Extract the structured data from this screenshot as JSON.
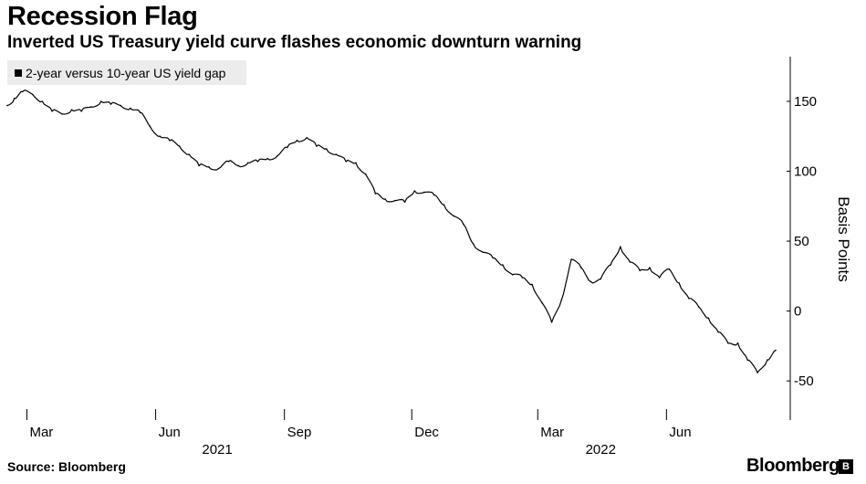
{
  "header": {
    "title": "Recession Flag",
    "subtitle": "Inverted US Treasury yield curve flashes economic downturn warning"
  },
  "legend": {
    "label": "2-year versus 10-year US yield gap"
  },
  "footer": {
    "source": "Source: Bloomberg",
    "brand": "Bloomberg",
    "brand_icon": "bloomberg-b-icon"
  },
  "chart_data": {
    "type": "line",
    "title": "Recession Flag",
    "subtitle": "Inverted US Treasury yield curve flashes economic downturn warning",
    "ylabel": "Basis Points",
    "xlabel": "",
    "y_axis_side": "right",
    "ylim": [
      -78,
      182
    ],
    "y_ticks": [
      150,
      100,
      50,
      0,
      -50
    ],
    "y_tick_labels": [
      "150",
      "100",
      "50",
      "0",
      "-50"
    ],
    "x_range": [
      "2021-02-15",
      "2022-08-18"
    ],
    "x_tick_dates": [
      "2021-03-01",
      "2021-06-01",
      "2021-09-01",
      "2021-12-01",
      "2022-03-01",
      "2022-06-01"
    ],
    "x_tick_labels": [
      "Mar",
      "Jun",
      "Sep",
      "Dec",
      "Mar",
      "Jun"
    ],
    "year_labels": [
      {
        "label": "2021",
        "date": "2021-07-15"
      },
      {
        "label": "2022",
        "date": "2022-04-15"
      }
    ],
    "grid": false,
    "legend_position": "top-left",
    "series": [
      {
        "name": "2-year versus 10-year US yield gap",
        "color": "#000000",
        "x": [
          "2021-02-15",
          "2021-02-20",
          "2021-02-26",
          "2021-03-05",
          "2021-03-12",
          "2021-03-19",
          "2021-03-26",
          "2021-04-02",
          "2021-04-09",
          "2021-04-16",
          "2021-04-23",
          "2021-04-30",
          "2021-05-07",
          "2021-05-14",
          "2021-05-21",
          "2021-05-28",
          "2021-06-04",
          "2021-06-11",
          "2021-06-18",
          "2021-06-25",
          "2021-07-02",
          "2021-07-09",
          "2021-07-16",
          "2021-07-23",
          "2021-07-30",
          "2021-08-06",
          "2021-08-13",
          "2021-08-20",
          "2021-08-27",
          "2021-09-03",
          "2021-09-10",
          "2021-09-17",
          "2021-09-24",
          "2021-10-01",
          "2021-10-08",
          "2021-10-15",
          "2021-10-22",
          "2021-10-29",
          "2021-11-05",
          "2021-11-12",
          "2021-11-19",
          "2021-11-26",
          "2021-12-03",
          "2021-12-10",
          "2021-12-17",
          "2021-12-24",
          "2021-12-31",
          "2022-01-07",
          "2022-01-14",
          "2022-01-21",
          "2022-01-28",
          "2022-02-04",
          "2022-02-11",
          "2022-02-18",
          "2022-02-25",
          "2022-03-04",
          "2022-03-11",
          "2022-03-18",
          "2022-03-25",
          "2022-04-01",
          "2022-04-08",
          "2022-04-15",
          "2022-04-22",
          "2022-04-29",
          "2022-05-06",
          "2022-05-13",
          "2022-05-20",
          "2022-05-27",
          "2022-06-03",
          "2022-06-10",
          "2022-06-17",
          "2022-06-24",
          "2022-07-01",
          "2022-07-08",
          "2022-07-15",
          "2022-07-22",
          "2022-07-29",
          "2022-08-05",
          "2022-08-12",
          "2022-08-18"
        ],
        "values": [
          147,
          152,
          157,
          155,
          150,
          143,
          141,
          144,
          143,
          146,
          150,
          148,
          147,
          145,
          142,
          132,
          125,
          122,
          118,
          112,
          104,
          103,
          102,
          107,
          104,
          106,
          107,
          109,
          111,
          117,
          122,
          124,
          118,
          116,
          112,
          107,
          106,
          98,
          84,
          80,
          79,
          78,
          86,
          85,
          83,
          76,
          68,
          62,
          48,
          42,
          38,
          33,
          26,
          24,
          19,
          6,
          -8,
          8,
          37,
          31,
          21,
          23,
          33,
          46,
          35,
          29,
          31,
          24,
          30,
          20,
          9,
          3,
          -5,
          -15,
          -23,
          -23,
          -35,
          -44,
          -35,
          -28
        ]
      }
    ]
  }
}
